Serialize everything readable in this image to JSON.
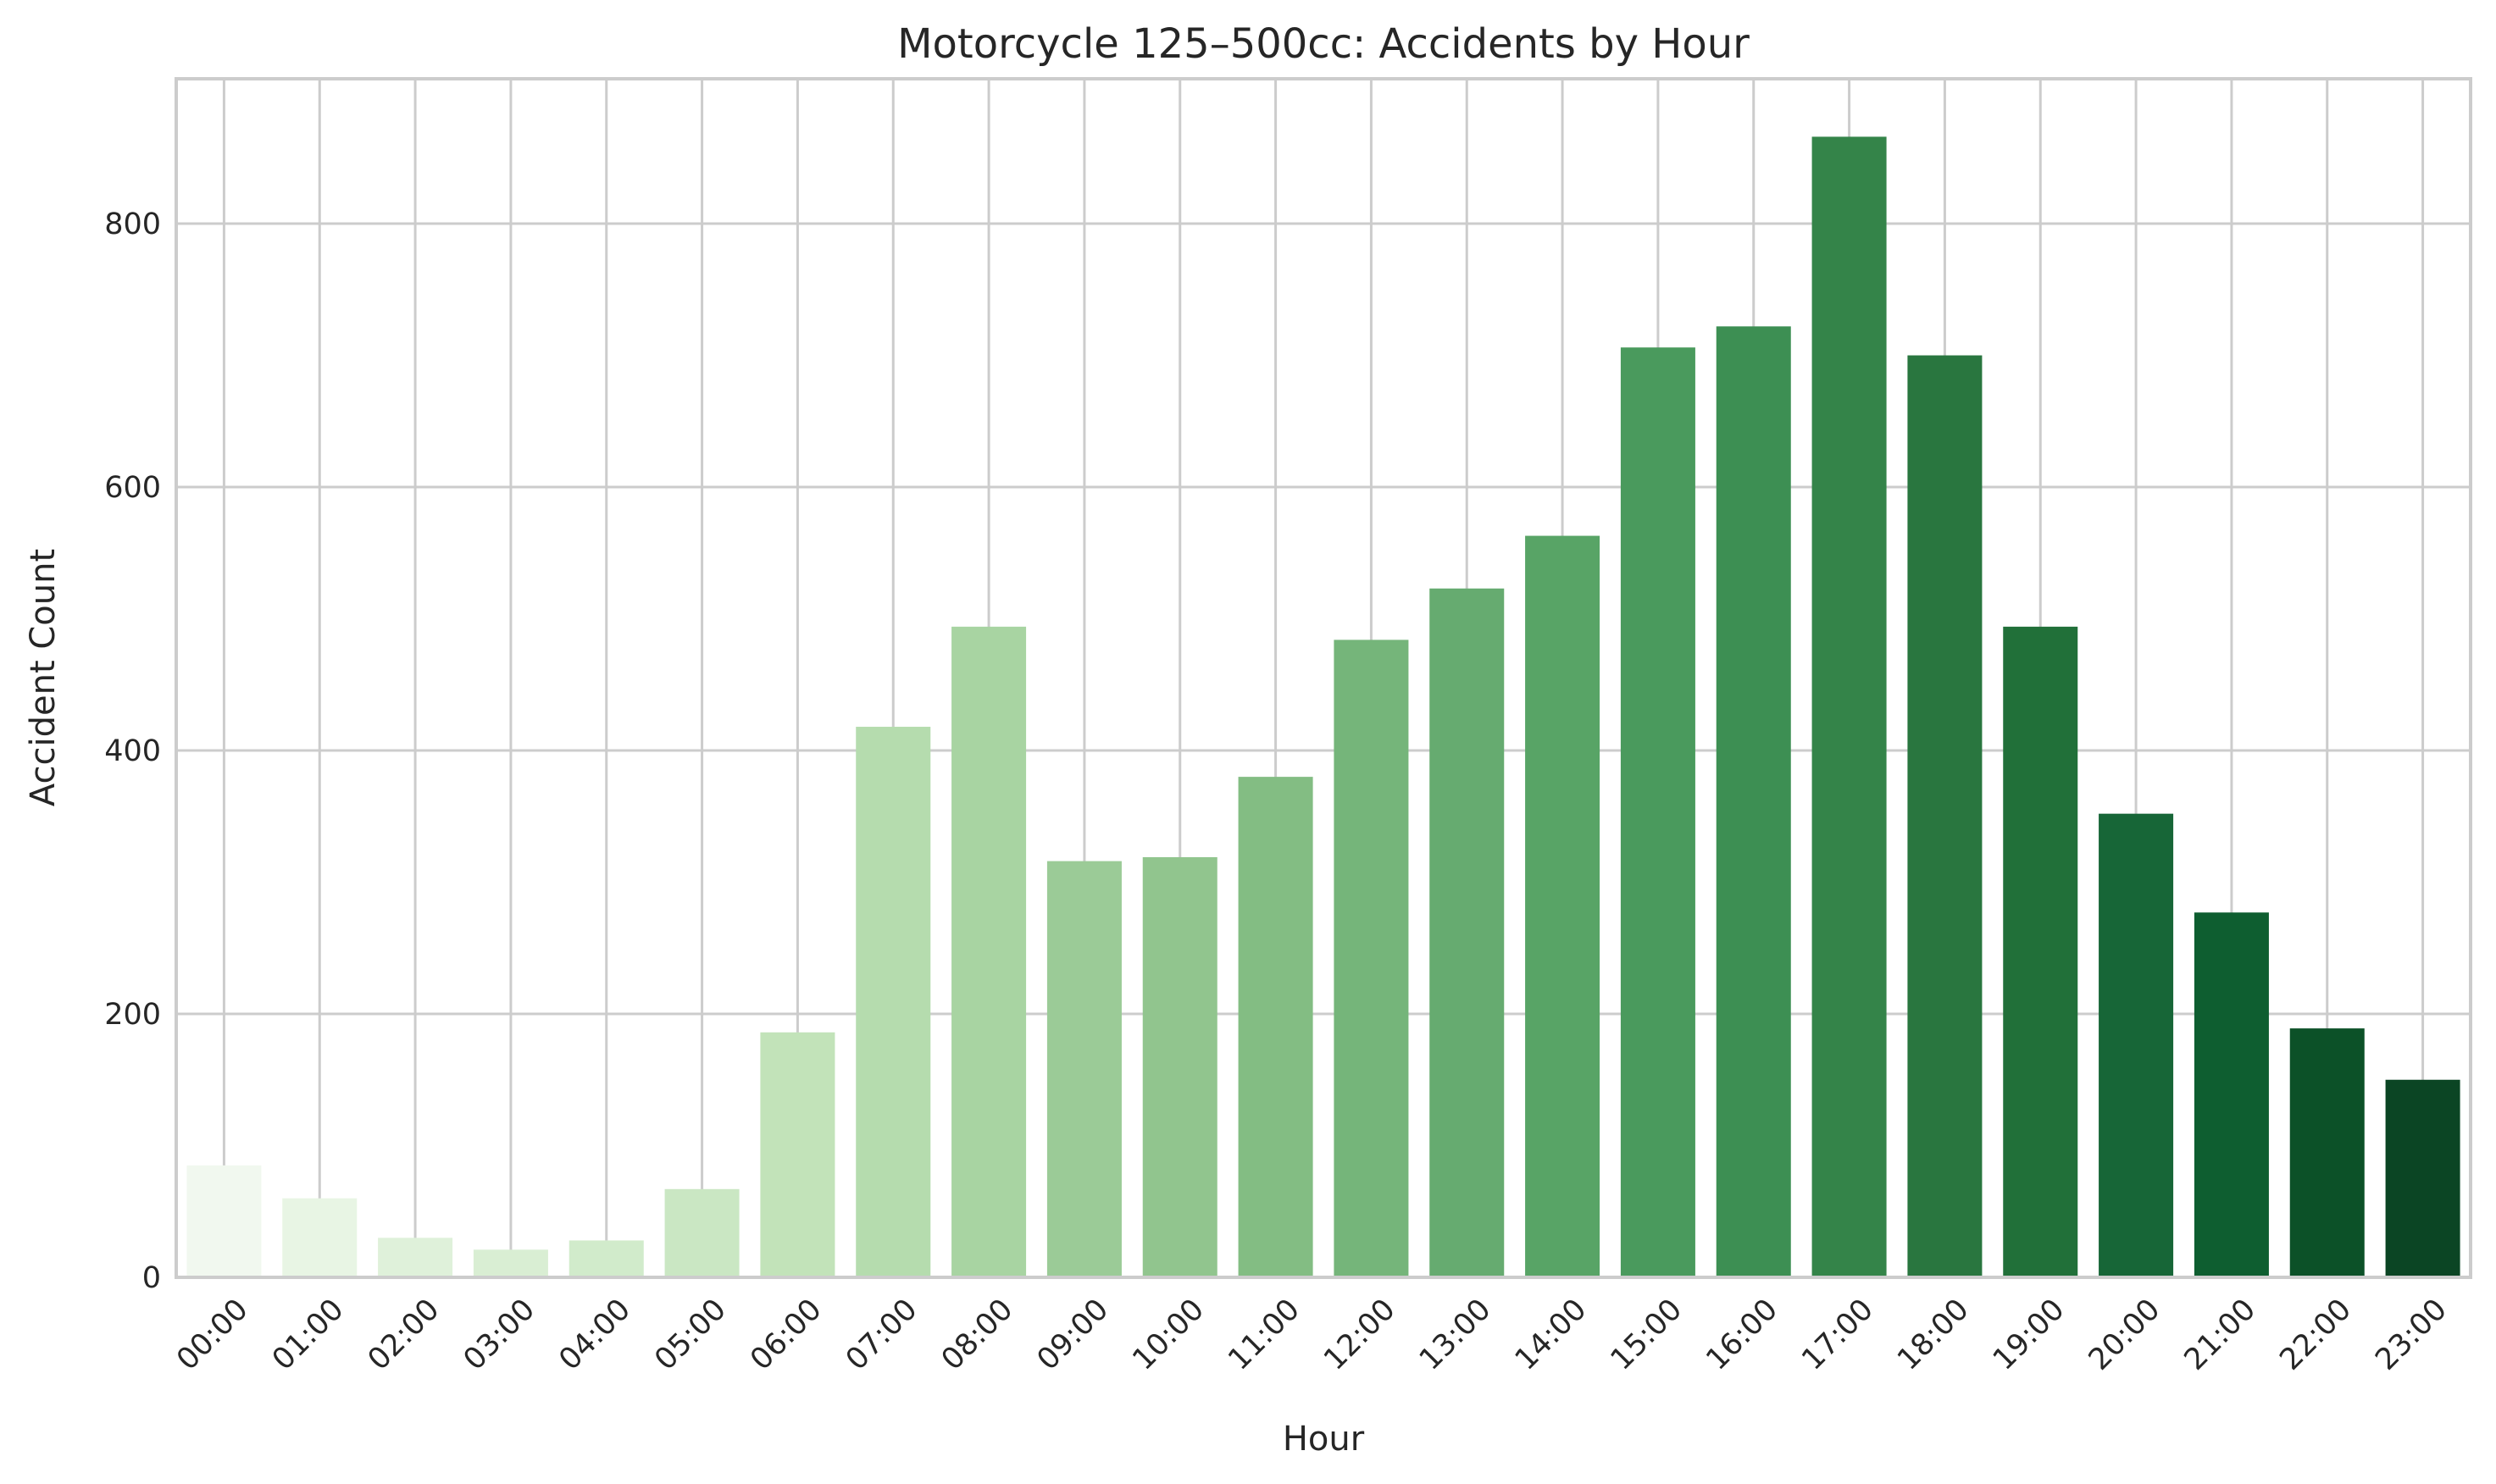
{
  "chart_data": {
    "type": "bar",
    "title": "Motorcycle 125–500cc: Accidents by Hour",
    "xlabel": "Hour",
    "ylabel": "Accident Count",
    "ylim": [
      0,
      910
    ],
    "yticks": [
      0,
      200,
      400,
      600,
      800
    ],
    "grid": true,
    "categories": [
      "00:00",
      "01:00",
      "02:00",
      "03:00",
      "04:00",
      "05:00",
      "06:00",
      "07:00",
      "08:00",
      "09:00",
      "10:00",
      "11:00",
      "12:00",
      "13:00",
      "14:00",
      "15:00",
      "16:00",
      "17:00",
      "18:00",
      "19:00",
      "20:00",
      "21:00",
      "22:00",
      "23:00"
    ],
    "values": [
      85,
      60,
      30,
      21,
      28,
      67,
      186,
      418,
      494,
      316,
      319,
      380,
      484,
      523,
      563,
      706,
      722,
      866,
      700,
      494,
      352,
      277,
      189,
      150
    ],
    "colors": [
      "#f1f8ef",
      "#e8f5e4",
      "#dff1da",
      "#d9eed3",
      "#d1ebcb",
      "#cae7c3",
      "#c2e3b9",
      "#b5dcae",
      "#a8d4a2",
      "#9bcb97",
      "#91c58e",
      "#83bd83",
      "#75b57a",
      "#66ab70",
      "#58a466",
      "#4a9a5d",
      "#3d8f53",
      "#348449",
      "#29763f",
      "#217039",
      "#176637",
      "#0e5e30",
      "#0c5128",
      "#0b4524"
    ]
  }
}
